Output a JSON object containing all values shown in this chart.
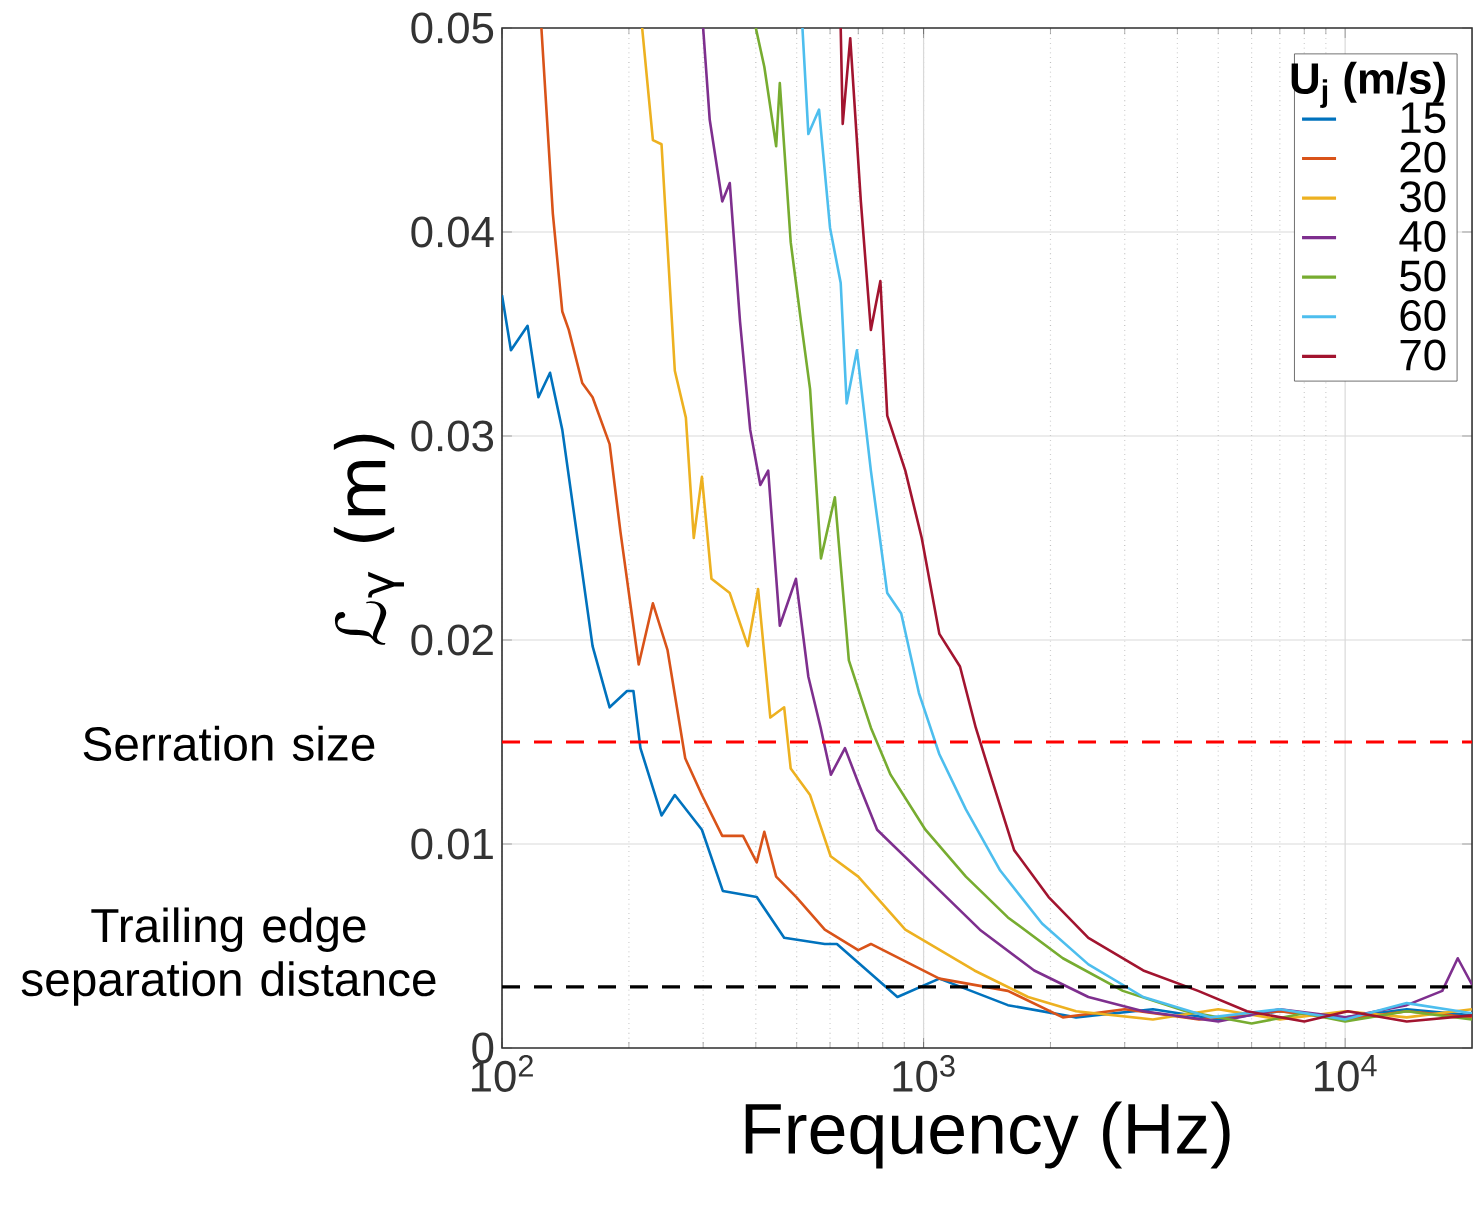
{
  "chart_data": {
    "type": "line",
    "xlabel": "Frequency (Hz)",
    "ylabel": "ℒ$_{γ}$ (m)",
    "legend_title": "**U$_{j}$ (m/s)**",
    "log": "x",
    "grid": true,
    "legend": "top right",
    "xlim": [
      100,
      20000
    ],
    "ylim": [
      0,
      0.05
    ],
    "xticks": [
      {
        "value": 100,
        "label": "10$^{2}$"
      },
      {
        "value": 1000,
        "label": "10$^{3}$"
      },
      {
        "value": 10000,
        "label": "10$^{4}$"
      }
    ],
    "yticks": [
      0,
      0.01,
      0.02,
      0.03,
      0.04,
      0.05
    ],
    "series": [
      {
        "name": "15",
        "color": "#0072bd",
        "x": [
          100,
          105,
          115,
          122,
          130,
          139,
          164,
          180,
          198,
          205,
          213,
          239,
          257,
          298,
          334,
          402,
          467,
          583,
          623,
          867,
          1090,
          1585,
          2300,
          3500,
          5000,
          7000,
          10000,
          14000,
          20000
        ],
        "values": [
          0.0369,
          0.0342,
          0.0354,
          0.0319,
          0.0331,
          0.0303,
          0.0197,
          0.0167,
          0.0175,
          0.0175,
          0.0147,
          0.0114,
          0.0124,
          0.0107,
          0.0077,
          0.0074,
          0.0054,
          0.0051,
          0.0051,
          0.0025,
          0.0034,
          0.0021,
          0.0015,
          0.0019,
          0.0014,
          0.0018,
          0.0015,
          0.0019,
          0.0016
        ]
      },
      {
        "name": "20",
        "color": "#d95319",
        "x": [
          124,
          132,
          139,
          144,
          155,
          164,
          180,
          191,
          211,
          228,
          247,
          272,
          298,
          333,
          373,
          402,
          419,
          447,
          499,
          583,
          700,
          750,
          1090,
          1585,
          2140,
          3000,
          4500,
          7000,
          10000,
          14000,
          20000
        ],
        "values": [
          0.05,
          0.0409,
          0.0361,
          0.0352,
          0.0326,
          0.0319,
          0.0296,
          0.0253,
          0.0188,
          0.0218,
          0.0195,
          0.0142,
          0.0124,
          0.0104,
          0.0104,
          0.0091,
          0.0106,
          0.0084,
          0.0074,
          0.0058,
          0.0048,
          0.0051,
          0.0034,
          0.0028,
          0.0015,
          0.0019,
          0.0014,
          0.0018,
          0.0014,
          0.0018,
          0.0015
        ]
      },
      {
        "name": "30",
        "color": "#edb120",
        "x": [
          215,
          228,
          239,
          257,
          273,
          285,
          298,
          314,
          347,
          383,
          405,
          433,
          467,
          484,
          538,
          602,
          700,
          905,
          1320,
          1770,
          2300,
          3500,
          5000,
          7000,
          10000,
          14000,
          20000
        ],
        "values": [
          0.05,
          0.0445,
          0.0443,
          0.0332,
          0.0309,
          0.025,
          0.028,
          0.023,
          0.0223,
          0.0197,
          0.0225,
          0.0162,
          0.0167,
          0.0137,
          0.0124,
          0.0094,
          0.0084,
          0.0058,
          0.0038,
          0.0025,
          0.0018,
          0.0014,
          0.0019,
          0.0014,
          0.0018,
          0.0015,
          0.0019
        ]
      },
      {
        "name": "40",
        "color": "#7e2f8e",
        "x": [
          300,
          311,
          333,
          347,
          367,
          388,
          410,
          428,
          456,
          498,
          533,
          570,
          603,
          651,
          700,
          776,
          1010,
          1360,
          1830,
          2460,
          3320,
          5000,
          7000,
          10000,
          14000,
          17000,
          18500,
          20000
        ],
        "values": [
          0.05,
          0.0455,
          0.0415,
          0.0424,
          0.0356,
          0.0303,
          0.0276,
          0.0283,
          0.0207,
          0.023,
          0.0182,
          0.0157,
          0.0134,
          0.0147,
          0.013,
          0.0107,
          0.0084,
          0.0058,
          0.0038,
          0.0025,
          0.0018,
          0.0013,
          0.0019,
          0.0015,
          0.0021,
          0.0028,
          0.0044,
          0.0031
        ]
      },
      {
        "name": "50",
        "color": "#77ac30",
        "x": [
          400,
          419,
          447,
          456,
          484,
          512,
          538,
          571,
          616,
          665,
          750,
          835,
          1010,
          1260,
          1585,
          2140,
          2970,
          4190,
          6000,
          8000,
          10000,
          14000,
          20000
        ],
        "values": [
          0.05,
          0.0481,
          0.0442,
          0.0473,
          0.0395,
          0.0356,
          0.0323,
          0.024,
          0.027,
          0.019,
          0.0157,
          0.0134,
          0.0107,
          0.0084,
          0.0064,
          0.0044,
          0.0028,
          0.0018,
          0.0012,
          0.0017,
          0.0013,
          0.0018,
          0.0014
        ]
      },
      {
        "name": "60",
        "color": "#4dbeee",
        "x": [
          516,
          533,
          565,
          600,
          636,
          657,
          695,
          750,
          820,
          885,
          975,
          1090,
          1260,
          1520,
          1910,
          2460,
          3320,
          4800,
          7000,
          10000,
          14000,
          20000
        ],
        "values": [
          0.05,
          0.0448,
          0.046,
          0.0402,
          0.0375,
          0.0316,
          0.0342,
          0.0283,
          0.0223,
          0.0213,
          0.0174,
          0.0144,
          0.0117,
          0.0087,
          0.0061,
          0.0041,
          0.0025,
          0.0015,
          0.0019,
          0.0014,
          0.0022,
          0.0017
        ]
      },
      {
        "name": "70",
        "color": "#a2142f",
        "x": [
          636,
          643,
          670,
          710,
          750,
          790,
          820,
          905,
          990,
          1090,
          1220,
          1330,
          1440,
          1640,
          1980,
          2460,
          3320,
          4480,
          5850,
          8000,
          10150,
          14000,
          20000
        ],
        "values": [
          0.05,
          0.0453,
          0.0495,
          0.0415,
          0.0352,
          0.0376,
          0.031,
          0.0283,
          0.025,
          0.0203,
          0.0187,
          0.0157,
          0.0134,
          0.0097,
          0.0074,
          0.0054,
          0.0038,
          0.0028,
          0.0018,
          0.0013,
          0.0018,
          0.0013,
          0.0016
        ]
      }
    ],
    "ref_lines": [
      {
        "axis": "y",
        "value": 0.015,
        "label": "Serration size",
        "color": "#ff0000",
        "line_style": "dashed"
      },
      {
        "axis": "y",
        "value": 0.003,
        "label": "Trailing edge separation distance",
        "color": "#000000",
        "line_style": "dashed"
      }
    ]
  }
}
